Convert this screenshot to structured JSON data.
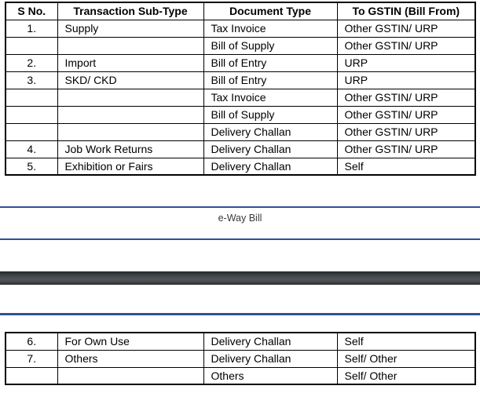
{
  "footer": {
    "text": "e-Way Bill"
  },
  "colors": {
    "rule_blue": "#2e5294",
    "separator_dark": "#3c4043",
    "table_border": "#000000"
  },
  "table1": {
    "headers": [
      "S No.",
      "Transaction Sub-Type",
      "Document Type",
      "To GSTIN (Bill From)"
    ],
    "rows": [
      [
        "1.",
        "Supply",
        "Tax Invoice",
        "Other GSTIN/ URP"
      ],
      [
        "",
        "",
        "Bill of Supply",
        "Other GSTIN/ URP"
      ],
      [
        "2.",
        "Import",
        "Bill of Entry",
        "URP"
      ],
      [
        "3.",
        "SKD/ CKD",
        "Bill of Entry",
        "URP"
      ],
      [
        "",
        "",
        "Tax Invoice",
        "Other GSTIN/ URP"
      ],
      [
        "",
        "",
        "Bill of Supply",
        "Other GSTIN/ URP"
      ],
      [
        "",
        "",
        "Delivery Challan",
        "Other GSTIN/ URP"
      ],
      [
        "4.",
        "Job Work Returns",
        "Delivery Challan",
        "Other GSTIN/ URP"
      ],
      [
        "5.",
        "Exhibition or Fairs",
        "Delivery Challan",
        "Self"
      ]
    ]
  },
  "table2": {
    "rows": [
      [
        "6.",
        "For Own Use",
        "Delivery Challan",
        "Self"
      ],
      [
        "7.",
        "Others",
        "Delivery Challan",
        "Self/ Other"
      ],
      [
        "",
        "",
        "Others",
        "Self/ Other"
      ]
    ]
  }
}
